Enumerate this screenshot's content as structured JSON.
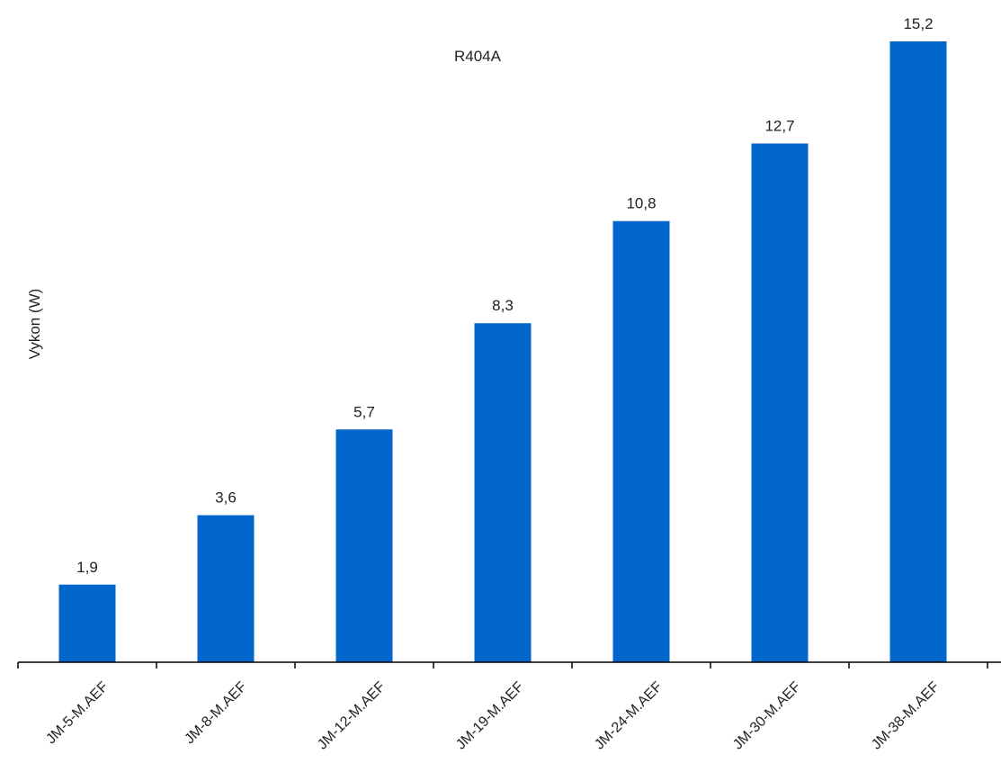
{
  "chart_data": {
    "type": "bar",
    "title": "R404A",
    "ylabel": "Vykon  (W)",
    "xlabel": "",
    "categories": [
      "JM-5-M.AEF",
      "JM-8-M.AEF",
      "JM-12-M.AEF",
      "JM-19-M.AEF",
      "JM-24-M.AEF",
      "JM-30-M.AEF",
      "JM-38-M.AEF"
    ],
    "values": [
      1.9,
      3.6,
      5.7,
      8.3,
      10.8,
      12.7,
      15.2
    ],
    "value_labels": [
      "1,9",
      "3,6",
      "5,7",
      "8,3",
      "10,8",
      "12,7",
      "15,2"
    ],
    "ylim": [
      0,
      15.2
    ],
    "grid": false,
    "legend": "none",
    "bar_color": "#0066cc"
  }
}
